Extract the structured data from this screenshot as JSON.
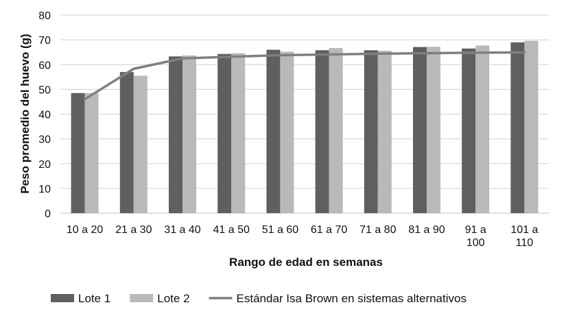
{
  "chart_data": {
    "type": "bar",
    "ylabel": "Peso promedio del huevo (g)",
    "xlabel": "Rango de edad en semanas",
    "ylim": [
      0,
      80
    ],
    "yticks": [
      0,
      10,
      20,
      30,
      40,
      50,
      60,
      70,
      80
    ],
    "grid": true,
    "legend_position": "bottom",
    "categories": [
      [
        "10 a 20"
      ],
      [
        "21 a 30"
      ],
      [
        "31 a 40"
      ],
      [
        "41 a 50"
      ],
      [
        "51 a 60"
      ],
      [
        "61 a 70"
      ],
      [
        "71 a 80"
      ],
      [
        "81 a 90"
      ],
      [
        "91 a",
        "100"
      ],
      [
        "101 a",
        "110"
      ]
    ],
    "series": [
      {
        "name": "Lote 1",
        "kind": "bar",
        "color": "#5f5f5f",
        "values": [
          48.5,
          57,
          63.3,
          64.3,
          66,
          65.8,
          65.8,
          67.1,
          66.5,
          69
        ]
      },
      {
        "name": "Lote 2",
        "kind": "bar",
        "color": "#b9b9b9",
        "values": [
          48.5,
          55.5,
          63.7,
          64.6,
          65.2,
          66.7,
          65.6,
          67.2,
          67.7,
          69.6
        ]
      },
      {
        "name": "Estándar Isa Brown en sistemas alternativos",
        "kind": "line",
        "color": "#7f7f7f",
        "values": [
          46,
          58.3,
          62.5,
          63.2,
          63.8,
          64.1,
          64.4,
          64.6,
          64.8,
          64.9
        ]
      }
    ]
  }
}
